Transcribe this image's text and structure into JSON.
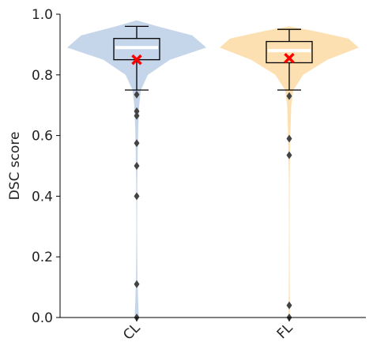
{
  "chart_data": {
    "type": "violin",
    "ylabel": "DSC score",
    "ylim": [
      0,
      1.0
    ],
    "yticks": [
      0.0,
      0.2,
      0.4,
      0.6,
      0.8,
      1.0
    ],
    "ytick_labels": [
      "0.0",
      "0.2",
      "0.4",
      "0.6",
      "0.8",
      "1.0"
    ],
    "categories": [
      "CL",
      "FL"
    ],
    "series": [
      {
        "category": "CL",
        "color": "#c5d5ea",
        "q1": 0.85,
        "median": 0.89,
        "q3": 0.92,
        "whisker_low": 0.75,
        "whisker_high": 0.96,
        "mean": 0.85,
        "outliers": [
          0.735,
          0.68,
          0.665,
          0.575,
          0.5,
          0.4,
          0.11,
          0.0
        ],
        "density": [
          [
            0.0,
            0.03
          ],
          [
            0.12,
            0.01
          ],
          [
            0.3,
            0.005
          ],
          [
            0.45,
            0.008
          ],
          [
            0.55,
            0.015
          ],
          [
            0.62,
            0.02
          ],
          [
            0.7,
            0.035
          ],
          [
            0.75,
            0.06
          ],
          [
            0.8,
            0.16
          ],
          [
            0.85,
            0.48
          ],
          [
            0.89,
            1.0
          ],
          [
            0.93,
            0.8
          ],
          [
            0.96,
            0.3
          ],
          [
            0.98,
            0.0
          ]
        ]
      },
      {
        "category": "FL",
        "color": "#fde0b2",
        "q1": 0.84,
        "median": 0.88,
        "q3": 0.91,
        "whisker_low": 0.75,
        "whisker_high": 0.95,
        "mean": 0.855,
        "outliers": [
          0.73,
          0.59,
          0.535,
          0.04,
          0.0
        ],
        "density": [
          [
            0.0,
            0.01
          ],
          [
            0.15,
            0.006
          ],
          [
            0.3,
            0.004
          ],
          [
            0.45,
            0.006
          ],
          [
            0.55,
            0.012
          ],
          [
            0.6,
            0.016
          ],
          [
            0.7,
            0.03
          ],
          [
            0.75,
            0.06
          ],
          [
            0.8,
            0.2
          ],
          [
            0.85,
            0.55
          ],
          [
            0.89,
            1.0
          ],
          [
            0.92,
            0.85
          ],
          [
            0.945,
            0.35
          ],
          [
            0.96,
            0.0
          ]
        ]
      }
    ],
    "box_color": "#000000",
    "median_color": "#ffffff",
    "mean_marker_color": "#ff0000",
    "outlier_color": "#444444"
  }
}
